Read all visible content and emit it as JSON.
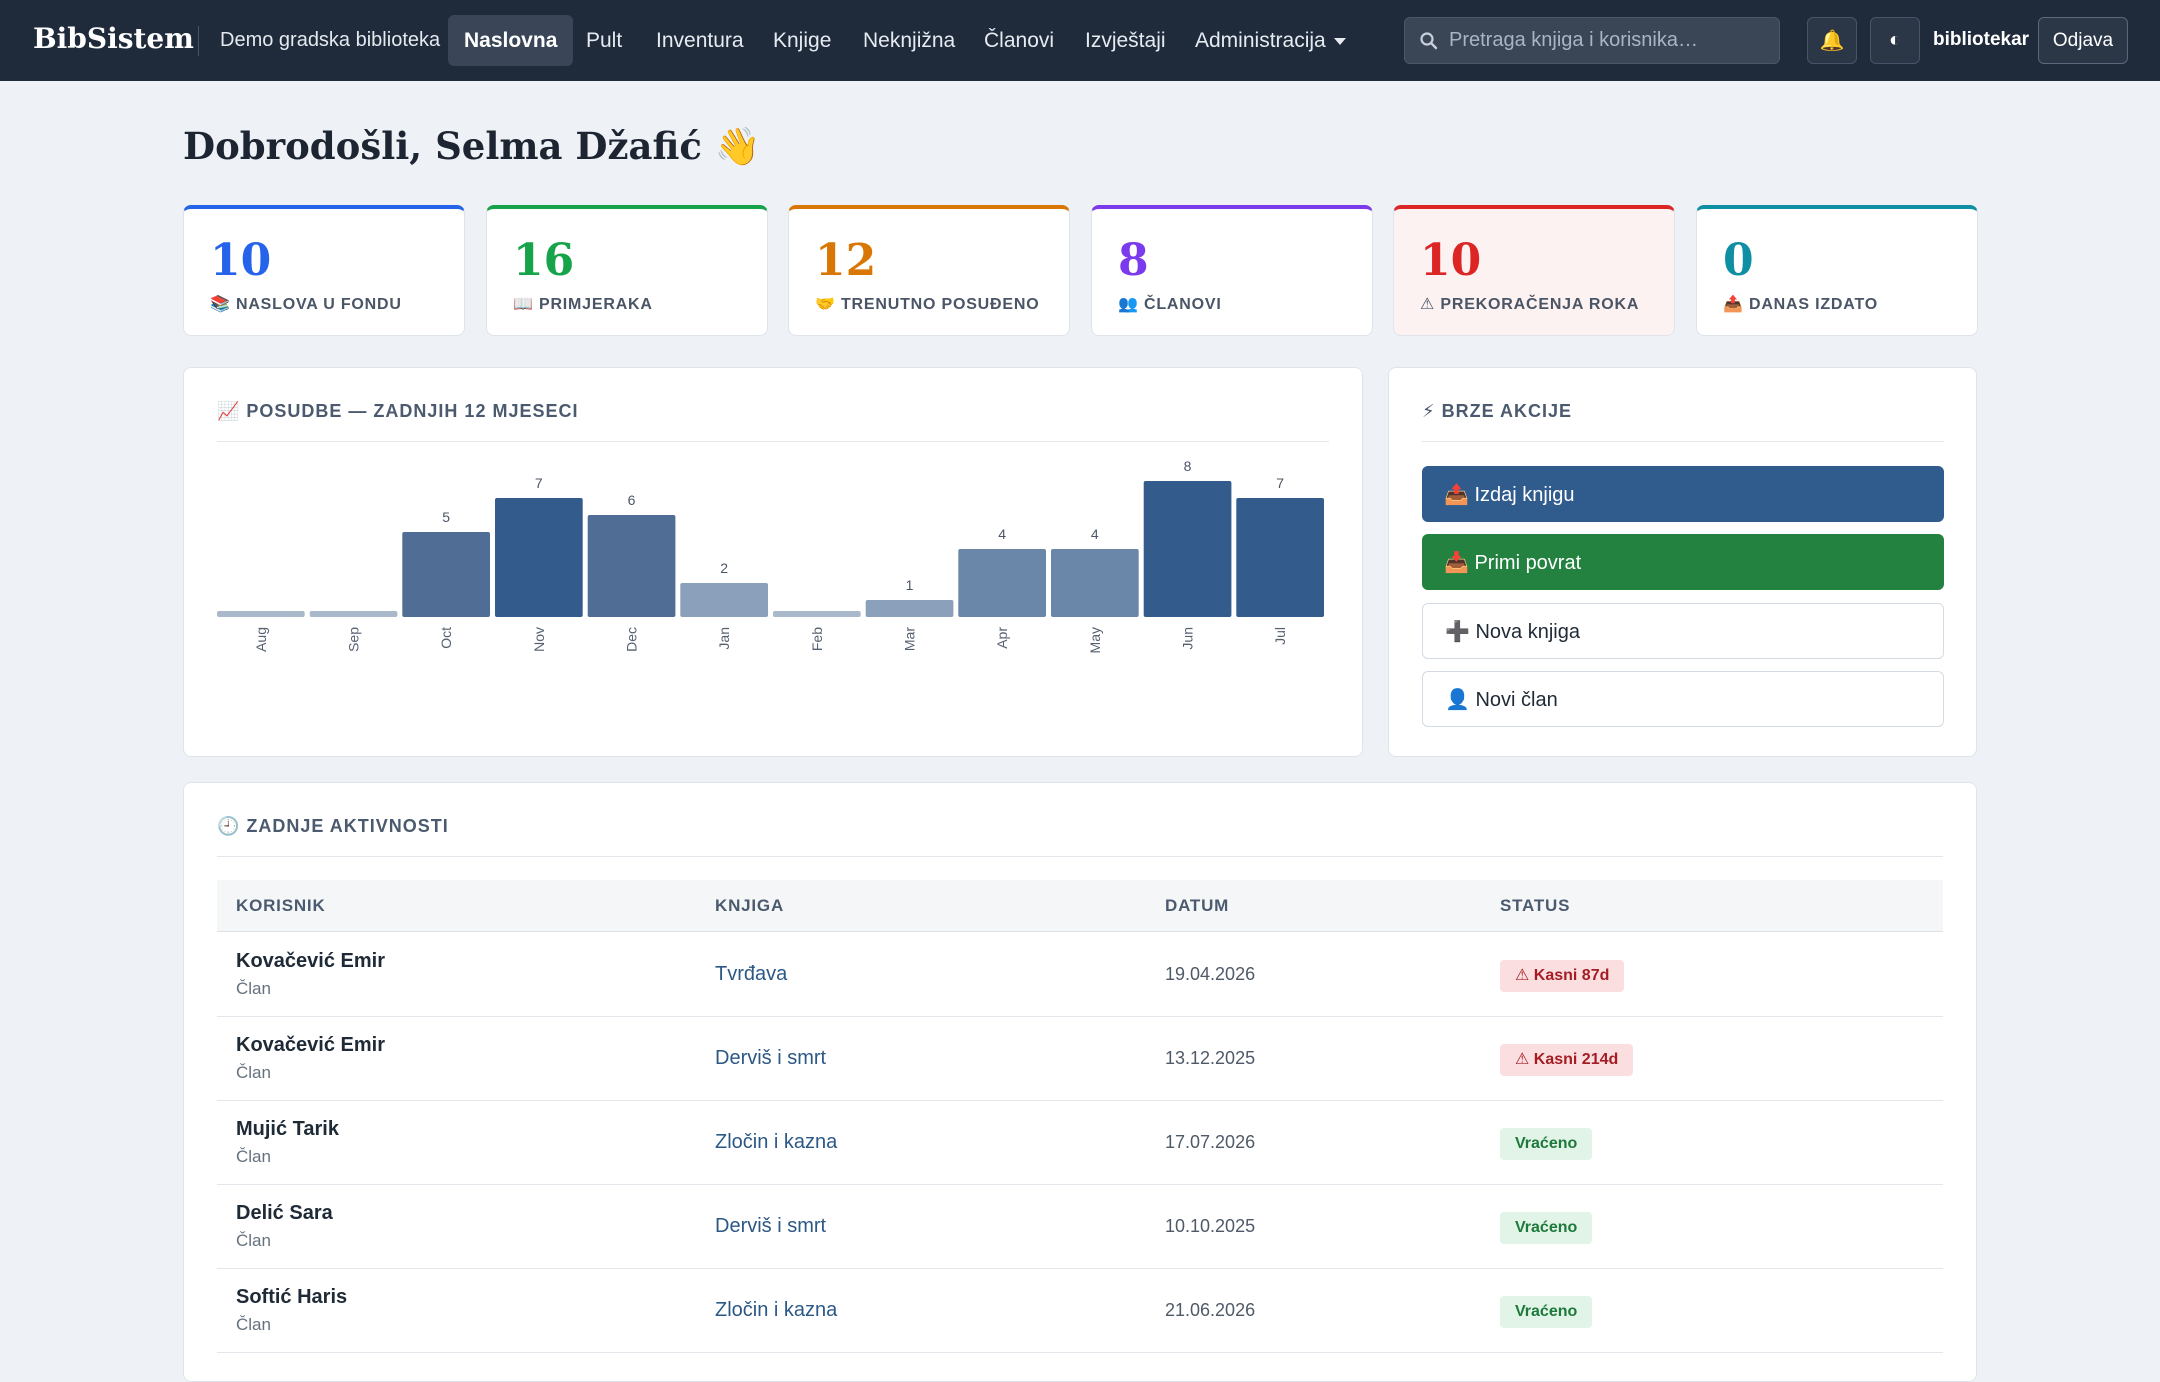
{
  "nav": {
    "brand": "BibSistem",
    "org": "Demo gradska biblioteka",
    "items": [
      {
        "label": "Naslovna",
        "active": true
      },
      {
        "label": "Pult"
      },
      {
        "label": "Inventura"
      },
      {
        "label": "Knjige"
      },
      {
        "label": "Neknjižna"
      },
      {
        "label": "Članovi"
      },
      {
        "label": "Izvještaji"
      },
      {
        "label": "Administracija"
      }
    ],
    "search_placeholder": "Pretraga knjiga i korisnika…",
    "bell_icon": "🔔",
    "theme_icon": "◐",
    "user": "bibliotekar",
    "logout": "Odjava"
  },
  "welcome": "Dobrodošli, Selma Džafić 👋",
  "stats": [
    {
      "value": "10",
      "label": "📚 NASLOVA U FONDU",
      "color": "#2563eb"
    },
    {
      "value": "16",
      "label": "📖 PRIMJERAKA",
      "color": "#16a34a"
    },
    {
      "value": "12",
      "label": "🤝 TRENUTNO POSUĐENO",
      "color": "#d97706"
    },
    {
      "value": "8",
      "label": "👥 ČLANOVI",
      "color": "#7c3aed"
    },
    {
      "value": "10",
      "label": "⚠ PREKORAČENJA ROKA",
      "color": "#dc2626"
    },
    {
      "value": "0",
      "label": "📤 DANAS IZDATO",
      "color": "#0e8fa3"
    }
  ],
  "chart_panel": {
    "title": "📈 POSUDBE — ZADNJIH 12 MJESECI"
  },
  "chart_data": {
    "type": "bar",
    "categories": [
      "Aug",
      "Sep",
      "Oct",
      "Nov",
      "Dec",
      "Jan",
      "Feb",
      "Mar",
      "Apr",
      "May",
      "Jun",
      "Jul"
    ],
    "values": [
      0,
      0,
      5,
      7,
      6,
      2,
      0,
      1,
      4,
      4,
      8,
      7
    ],
    "title": "📈 POSUDBE — ZADNJIH 12 MJESECI",
    "xlabel": "",
    "ylabel": "",
    "ylim": [
      0,
      8
    ],
    "grid": false,
    "legend": "none"
  },
  "quick": {
    "title": "⚡ BRZE AKCIJE",
    "actions": [
      {
        "label": "📤 Izdaj knjigu",
        "style": "primary"
      },
      {
        "label": "📥 Primi povrat",
        "style": "success"
      },
      {
        "label": "➕ Nova knjiga",
        "style": "outline"
      },
      {
        "label": "👤 Novi član",
        "style": "outline"
      }
    ]
  },
  "activity": {
    "title": "🕘 ZADNJE AKTIVNOSTI",
    "columns": [
      "KORISNIK",
      "KNJIGA",
      "DATUM",
      "STATUS"
    ],
    "rows": [
      {
        "name": "Kovačević Emir",
        "role": "Član",
        "book": "Tvrđava",
        "date": "19.04.2026",
        "status": "⚠ Kasni 87d",
        "kind": "late"
      },
      {
        "name": "Kovačević Emir",
        "role": "Član",
        "book": "Derviš i smrt",
        "date": "13.12.2025",
        "status": "⚠ Kasni 214d",
        "kind": "late"
      },
      {
        "name": "Mujić Tarik",
        "role": "Član",
        "book": "Zločin i kazna",
        "date": "17.07.2026",
        "status": "Vraćeno",
        "kind": "ok"
      },
      {
        "name": "Delić Sara",
        "role": "Član",
        "book": "Derviš i smrt",
        "date": "10.10.2025",
        "status": "Vraćeno",
        "kind": "ok"
      },
      {
        "name": "Softić Haris",
        "role": "Član",
        "book": "Zločin i kazna",
        "date": "21.06.2026",
        "status": "Vraćeno",
        "kind": "ok"
      }
    ]
  }
}
